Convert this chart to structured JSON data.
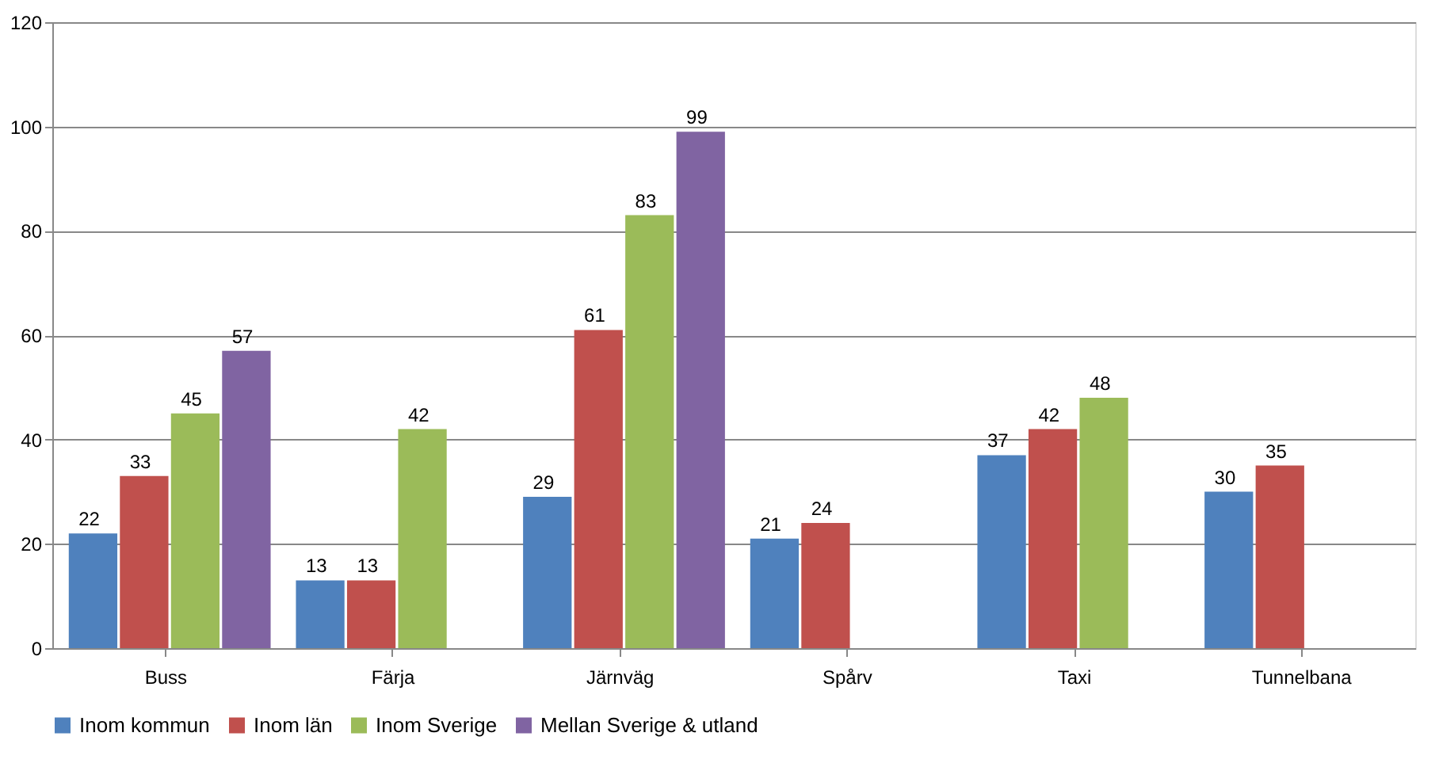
{
  "chart_data": {
    "type": "bar",
    "categories": [
      "Buss",
      "Färja",
      "Järnväg",
      "Spårv",
      "Taxi",
      "Tunnelbana"
    ],
    "series": [
      {
        "name": "Inom kommun",
        "color": "#4f81bd",
        "values": [
          22,
          13,
          29,
          21,
          37,
          30
        ]
      },
      {
        "name": "Inom län",
        "color": "#c0504d",
        "values": [
          33,
          13,
          61,
          24,
          42,
          35
        ]
      },
      {
        "name": "Inom Sverige",
        "color": "#9bbb59",
        "values": [
          45,
          42,
          83,
          null,
          48,
          null
        ]
      },
      {
        "name": "Mellan Sverige & utland",
        "color": "#8064a2",
        "values": [
          57,
          null,
          99,
          null,
          null,
          null
        ]
      }
    ],
    "ylim": [
      0,
      120
    ],
    "yticks": [
      0,
      20,
      40,
      60,
      80,
      100,
      120
    ],
    "grid": "y",
    "legend": "bottom",
    "data_labels": true
  }
}
